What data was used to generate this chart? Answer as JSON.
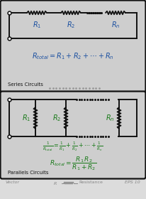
{
  "bg_color": "#dcdcdc",
  "box_face": "#cecece",
  "border_color": "#111111",
  "blue_color": "#1a4fa0",
  "green_color": "#1a7a1a",
  "black_color": "#111111",
  "gray_color": "#888888",
  "series_label": "Series Circuits",
  "parallel_label": "Parallels Circuits",
  "series_formula": "$R_{total} = R_1 + R_2 + \\cdots + R_n$",
  "parallel_formula1": "$\\frac{1}{R_{total}} = \\frac{1}{R_1} + \\frac{1}{R_2} + \\cdots + \\frac{1}{R_n}$",
  "parallel_formula2": "$R_{total} = \\dfrac{R_1\\,R_2}{R_1 + R_2}$",
  "footer_vector": "Vector",
  "footer_eps": "EPS 10",
  "r1_label": "$R_1$",
  "r2_label": "$R_2$",
  "rn_label": "$R_n$",
  "fig_width": 2.06,
  "fig_height": 2.8,
  "dpi": 100
}
